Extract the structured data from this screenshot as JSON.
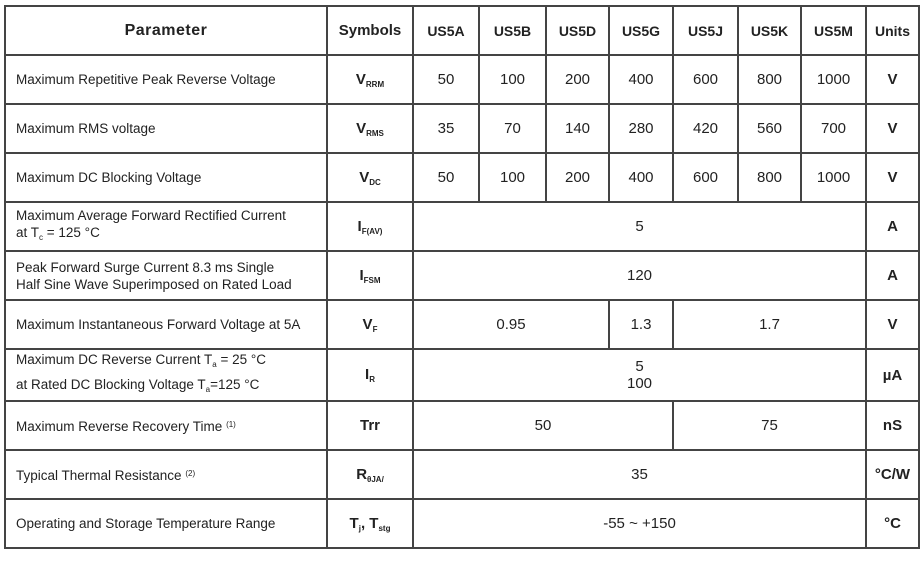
{
  "header": {
    "parameter": "Parameter",
    "symbols": "Symbols",
    "models": [
      "US5A",
      "US5B",
      "US5D",
      "US5G",
      "US5J",
      "US5K",
      "US5M"
    ],
    "units": "Units"
  },
  "rows": [
    {
      "parameter": [
        "Maximum Repetitive Peak Reverse Voltage"
      ],
      "symbol": "V",
      "symbol_sub": "RRM",
      "cells": [
        {
          "v": "50",
          "span": 1
        },
        {
          "v": "100",
          "span": 1
        },
        {
          "v": "200",
          "span": 1
        },
        {
          "v": "400",
          "span": 1
        },
        {
          "v": "600",
          "span": 1
        },
        {
          "v": "800",
          "span": 1
        },
        {
          "v": "1000",
          "span": 1
        }
      ],
      "unit": "V"
    },
    {
      "parameter": [
        "Maximum RMS voltage"
      ],
      "symbol": "V",
      "symbol_sub": "RMS",
      "cells": [
        {
          "v": "35",
          "span": 1
        },
        {
          "v": "70",
          "span": 1
        },
        {
          "v": "140",
          "span": 1
        },
        {
          "v": "280",
          "span": 1
        },
        {
          "v": "420",
          "span": 1
        },
        {
          "v": "560",
          "span": 1
        },
        {
          "v": "700",
          "span": 1
        }
      ],
      "unit": "V"
    },
    {
      "parameter": [
        "Maximum DC Blocking Voltage"
      ],
      "symbol": "V",
      "symbol_sub": "DC",
      "cells": [
        {
          "v": "50",
          "span": 1
        },
        {
          "v": "100",
          "span": 1
        },
        {
          "v": "200",
          "span": 1
        },
        {
          "v": "400",
          "span": 1
        },
        {
          "v": "600",
          "span": 1
        },
        {
          "v": "800",
          "span": 1
        },
        {
          "v": "1000",
          "span": 1
        }
      ],
      "unit": "V"
    },
    {
      "parameter": [
        "Maximum Average Forward Rectified Current",
        "at T_c = 125 °C"
      ],
      "symbol": "I",
      "symbol_sub": "F(AV)",
      "cells": [
        {
          "v": "5",
          "span": 7
        }
      ],
      "unit": "A"
    },
    {
      "parameter": [
        "Peak Forward Surge Current 8.3 ms Single",
        "Half Sine Wave Superimposed on Rated Load"
      ],
      "symbol": "I",
      "symbol_sub": "FSM",
      "cells": [
        {
          "v": "120",
          "span": 7
        }
      ],
      "unit": "A"
    },
    {
      "parameter": [
        "Maximum Instantaneous Forward Voltage at 5A"
      ],
      "symbol": "V",
      "symbol_sub": "F",
      "cells": [
        {
          "v": "0.95",
          "span": 3
        },
        {
          "v": "1.3",
          "span": 1
        },
        {
          "v": "1.7",
          "span": 3
        }
      ],
      "unit": "V"
    },
    {
      "parameter": [
        "Maximum DC Reverse Current   T_a = 25 °C",
        "at Rated DC Blocking Voltage    T_a=125 °C"
      ],
      "symbol": "I",
      "symbol_sub": "R",
      "cells": [
        {
          "v": "5\n100",
          "span": 7
        }
      ],
      "unit": "µA"
    },
    {
      "parameter": [
        "Maximum Reverse Recovery Time ^(1)"
      ],
      "symbol": "Trr",
      "symbol_sub": "",
      "cells": [
        {
          "v": "50",
          "span": 4
        },
        {
          "v": "75",
          "span": 3
        }
      ],
      "unit": "nS"
    },
    {
      "parameter": [
        "Typical Thermal Resistance  ^(2)"
      ],
      "symbol": "R",
      "symbol_sub": "θJA/",
      "cells": [
        {
          "v": "35",
          "span": 7
        }
      ],
      "unit": "°C/W"
    },
    {
      "parameter": [
        "Operating and Storage Temperature Range"
      ],
      "symbol": "T_j, T_stg",
      "symbol_sub": "",
      "cells": [
        {
          "v": "-55 ~ +150",
          "span": 7
        }
      ],
      "unit": "°C"
    }
  ]
}
